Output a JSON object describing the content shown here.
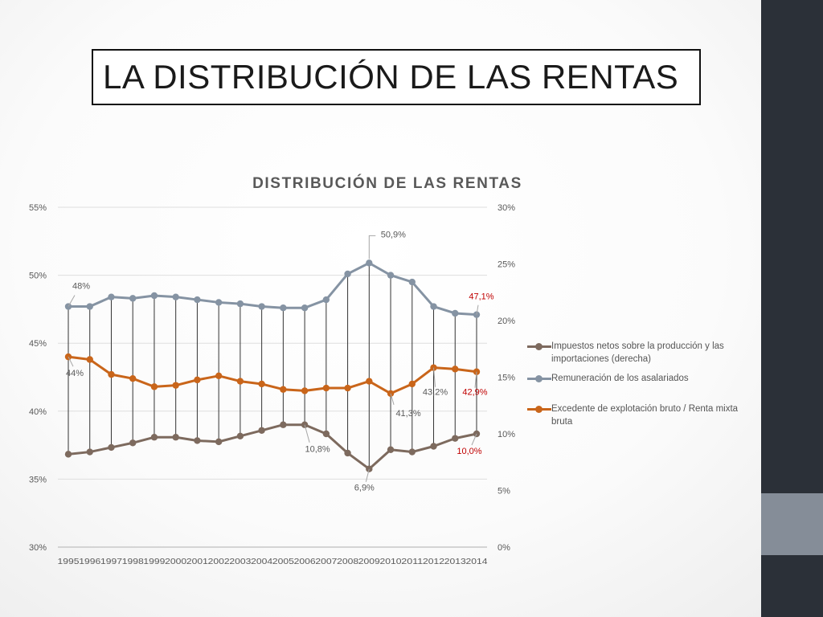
{
  "slide": {
    "title": "LA DISTRIBUCIÓN DE LAS RENTAS"
  },
  "chart_data": {
    "type": "line",
    "title": "DISTRIBUCIÓN DE LAS RENTAS",
    "xlabel": "",
    "ylabel": "",
    "categories": [
      "1995",
      "1996",
      "1997",
      "1998",
      "1999",
      "2000",
      "2001",
      "2002",
      "2003",
      "2004",
      "2005",
      "2006",
      "2007",
      "2008",
      "2009",
      "2010",
      "2011",
      "2012",
      "2013",
      "2014"
    ],
    "left_axis": {
      "range": [
        30,
        55
      ],
      "ticks": [
        "30%",
        "35%",
        "40%",
        "45%",
        "50%",
        "55%"
      ]
    },
    "right_axis": {
      "range": [
        0,
        30
      ],
      "ticks": [
        "0%",
        "5%",
        "10%",
        "15%",
        "20%",
        "25%",
        "30%"
      ]
    },
    "grid": "horizontal",
    "legend_position": "right",
    "high_low_lines": true,
    "series": [
      {
        "name": "Impuestos netos sobre la producción y las importaciones (derecha)",
        "axis": "right",
        "color": "#7d6a5e",
        "values": [
          8.2,
          8.4,
          8.8,
          9.2,
          9.7,
          9.7,
          9.4,
          9.3,
          9.8,
          10.3,
          10.8,
          10.8,
          10.0,
          8.3,
          6.9,
          8.6,
          8.4,
          8.9,
          9.6,
          10.0
        ]
      },
      {
        "name": "Remuneración de los asalariados",
        "axis": "left",
        "color": "#8593a3",
        "values": [
          47.7,
          47.7,
          48.4,
          48.3,
          48.5,
          48.4,
          48.2,
          48.0,
          47.9,
          47.7,
          47.6,
          47.6,
          48.2,
          50.1,
          50.9,
          50.0,
          49.5,
          47.7,
          47.2,
          47.1
        ]
      },
      {
        "name": "Excedente de explotación bruto / Renta mixta bruta",
        "axis": "left",
        "color": "#c9651a",
        "values": [
          44.0,
          43.8,
          42.7,
          42.4,
          41.8,
          41.9,
          42.3,
          42.6,
          42.2,
          42.0,
          41.6,
          41.5,
          41.7,
          41.7,
          42.2,
          41.3,
          42.0,
          43.2,
          43.1,
          42.9
        ]
      }
    ],
    "annotations": [
      {
        "text": "48%",
        "series": 1,
        "index": 0,
        "color": "#595959"
      },
      {
        "text": "44%",
        "series": 2,
        "index": 0,
        "color": "#595959"
      },
      {
        "text": "50,9%",
        "series": 1,
        "index": 14,
        "color": "#595959"
      },
      {
        "text": "47,1%",
        "series": 1,
        "index": 19,
        "color": "#c00000"
      },
      {
        "text": "41,3%",
        "series": 2,
        "index": 15,
        "color": "#595959"
      },
      {
        "text": "43,2%",
        "series": 2,
        "index": 17,
        "color": "#595959"
      },
      {
        "text": "42,9%",
        "series": 2,
        "index": 19,
        "color": "#c00000"
      },
      {
        "text": "10,8%",
        "series": 0,
        "index": 11,
        "color": "#595959"
      },
      {
        "text": "6,9%",
        "series": 0,
        "index": 14,
        "color": "#595959"
      },
      {
        "text": "10,0%",
        "series": 0,
        "index": 19,
        "color": "#c00000"
      }
    ]
  }
}
